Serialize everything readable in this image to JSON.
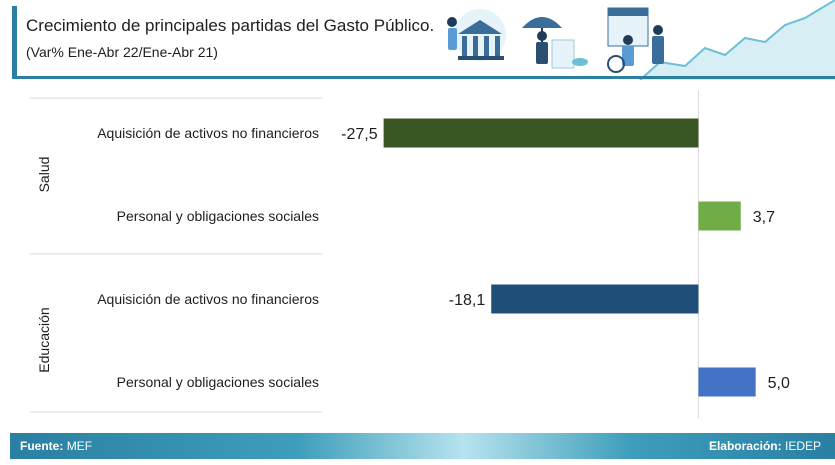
{
  "header": {
    "title": "Crecimiento de principales partidas del Gasto Público.",
    "subtitle": "(Var% Ene-Abr 22/Ene-Abr 21)"
  },
  "footer": {
    "source_label": "Fuente:",
    "source_value": "MEF",
    "credit_label": "Elaboración:",
    "credit_value": "IEDEP"
  },
  "colors": {
    "brand": "#2a7fa3",
    "salud_aquisicion": "#375623",
    "salud_personal": "#70ad47",
    "educacion_aquisicion": "#1f4e79",
    "educacion_personal": "#4472c4"
  },
  "chart_data": {
    "type": "bar",
    "orientation": "horizontal",
    "groups": [
      "Salud",
      "Educación"
    ],
    "categories": [
      "Aquisición de activos no financieros",
      "Personal y obligaciones sociales",
      "Aquisición de activos no financieros",
      "Personal y obligaciones sociales"
    ],
    "category_groups": [
      "Salud",
      "Salud",
      "Educación",
      "Educación"
    ],
    "values": [
      -27.5,
      3.7,
      -18.1,
      5.0
    ],
    "data_labels": [
      "-27,5",
      "3,7",
      "-18,1",
      "5,0"
    ],
    "bar_colors": [
      "#375623",
      "#70ad47",
      "#1f4e79",
      "#4472c4"
    ],
    "xlim": [
      -30,
      8
    ],
    "title": "",
    "xlabel": "",
    "ylabel": ""
  }
}
